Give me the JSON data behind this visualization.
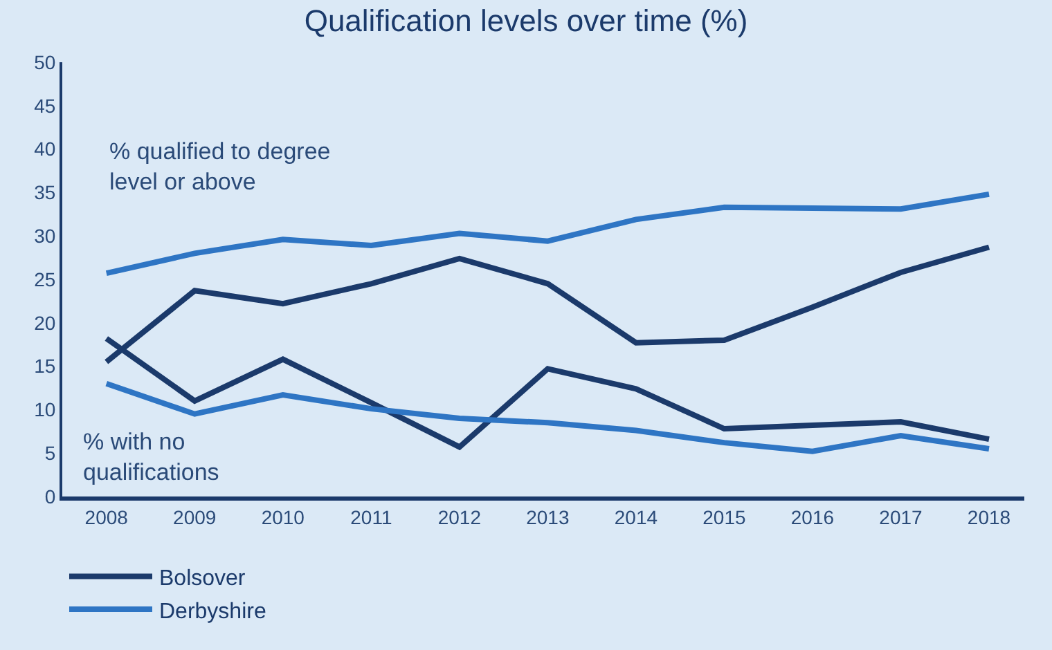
{
  "chart_data": {
    "type": "line",
    "title": "Qualification levels over time (%)",
    "categories": [
      "2008",
      "2009",
      "2010",
      "2011",
      "2012",
      "2013",
      "2014",
      "2015",
      "2016",
      "2017",
      "2018"
    ],
    "series": [
      {
        "name": "Bolsover",
        "color": "#1b3a6b",
        "values": [
          15.5,
          23.7,
          22.2,
          24.5,
          27.4,
          24.5,
          17.7,
          18,
          21.8,
          25.8,
          28.7
        ]
      },
      {
        "color": "#1b3a6b",
        "values": [
          18.2,
          11,
          15.8,
          10.8,
          5.7,
          14.7,
          12.4,
          7.8,
          8.2,
          8.6,
          6.6
        ]
      },
      {
        "name": "Derbyshire",
        "color": "#2e75c4",
        "values": [
          25.7,
          28,
          29.6,
          28.9,
          30.3,
          29.4,
          31.9,
          33.3,
          33.2,
          33.1,
          34.8
        ]
      },
      {
        "color": "#2e75c4",
        "values": [
          13,
          9.5,
          11.7,
          10.1,
          9,
          8.5,
          7.6,
          6.2,
          5.2,
          7,
          5.5
        ]
      }
    ],
    "annotations": [
      "% qualified to degree\nlevel or above",
      "% with no\nqualifications"
    ],
    "ylim": [
      0,
      50
    ],
    "yticks": [
      0,
      5,
      10,
      15,
      20,
      25,
      30,
      35,
      40,
      45,
      50
    ],
    "grid": false,
    "legend": "bottom",
    "marker": "none",
    "line_style": "solid"
  }
}
